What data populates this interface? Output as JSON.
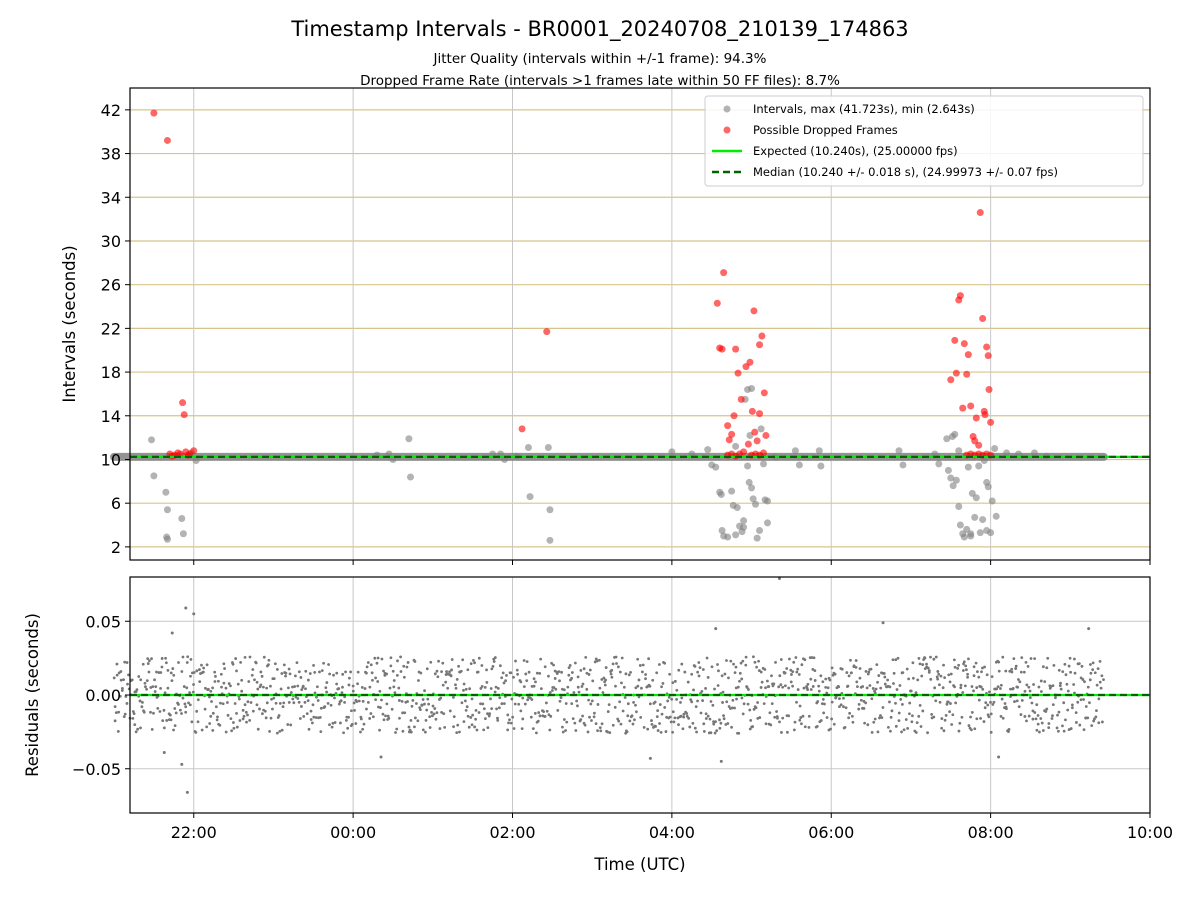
{
  "title": "Timestamp Intervals - BR0001_20240708_210139_174863",
  "subtitle_1": "Jitter Quality (intervals within +/-1 frame): 94.3%",
  "subtitle_2": "Dropped Frame Rate (intervals >1 frames late within 50 FF files): 8.7%",
  "chart_data": [
    {
      "type": "scatter",
      "ylabel": "Intervals (seconds)",
      "xlim": [
        -3.47,
        10.0
      ],
      "ylim": [
        0.8,
        44.0
      ],
      "y_ticks": [
        2,
        6,
        10,
        14,
        18,
        22,
        26,
        30,
        34,
        38,
        42
      ],
      "x_tick_hours": [
        22,
        24,
        26,
        28,
        30,
        32,
        34
      ],
      "grid": "on",
      "legend_position": "top-right",
      "colors": {
        "intervals": "#808080",
        "dropped": "#ff0000",
        "expected": "#00ee00",
        "median": "#006400",
        "hgrid": "#d8c48a",
        "vgrid": "#c8c8c8"
      },
      "legend": [
        {
          "label": "Intervals, max (41.723s), min (2.643s)",
          "marker": "gray-dot"
        },
        {
          "label": "Possible Dropped Frames",
          "marker": "red-dot"
        },
        {
          "label": "Expected (10.240s), (25.00000 fps)",
          "marker": "green-line"
        },
        {
          "label": "Median (10.240 +/- 0.018 s), (24.99973 +/- 0.07 fps)",
          "marker": "dashed-darkgreen-line"
        }
      ],
      "expected_interval": 10.24,
      "median_interval": 10.24,
      "baseline_range_hours": [
        21.0,
        33.42
      ],
      "series": [
        {
          "name": "Intervals, max (41.723s), min (2.643s)",
          "points": [
            [
              21.47,
              11.8
            ],
            [
              21.5,
              8.5
            ],
            [
              21.65,
              7.0
            ],
            [
              21.67,
              5.4
            ],
            [
              21.66,
              2.9
            ],
            [
              21.67,
              2.7
            ],
            [
              21.85,
              4.6
            ],
            [
              21.87,
              3.2
            ],
            [
              21.97,
              10.6
            ],
            [
              22.03,
              9.9
            ],
            [
              24.3,
              10.4
            ],
            [
              24.45,
              10.5
            ],
            [
              24.5,
              10.0
            ],
            [
              24.7,
              11.9
            ],
            [
              24.72,
              8.4
            ],
            [
              25.75,
              10.5
            ],
            [
              25.85,
              10.5
            ],
            [
              25.9,
              10.0
            ],
            [
              26.05,
              10.3
            ],
            [
              26.2,
              11.1
            ],
            [
              26.22,
              6.6
            ],
            [
              26.45,
              11.1
            ],
            [
              26.47,
              5.4
            ],
            [
              26.47,
              2.6
            ],
            [
              28.0,
              10.7
            ],
            [
              28.25,
              10.5
            ],
            [
              28.45,
              10.9
            ],
            [
              28.5,
              9.5
            ],
            [
              28.55,
              9.3
            ],
            [
              28.6,
              7.0
            ],
            [
              28.62,
              6.8
            ],
            [
              28.63,
              3.5
            ],
            [
              28.65,
              3.0
            ],
            [
              28.7,
              2.9
            ],
            [
              28.75,
              7.1
            ],
            [
              28.77,
              5.8
            ],
            [
              28.8,
              11.2
            ],
            [
              28.82,
              5.6
            ],
            [
              28.85,
              3.9
            ],
            [
              28.88,
              3.4
            ],
            [
              28.9,
              4.4
            ],
            [
              28.95,
              9.4
            ],
            [
              28.97,
              7.9
            ],
            [
              29.0,
              7.4
            ],
            [
              29.02,
              6.4
            ],
            [
              29.05,
              5.9
            ],
            [
              29.07,
              2.8
            ],
            [
              29.1,
              3.5
            ],
            [
              29.12,
              12.8
            ],
            [
              29.15,
              9.6
            ],
            [
              29.17,
              6.3
            ],
            [
              29.2,
              4.2
            ],
            [
              28.98,
              12.2
            ],
            [
              28.92,
              15.5
            ],
            [
              28.95,
              16.4
            ],
            [
              29.0,
              16.5
            ],
            [
              28.9,
              3.8
            ],
            [
              28.8,
              3.1
            ],
            [
              29.2,
              6.2
            ],
            [
              29.3,
              10.2
            ],
            [
              29.55,
              10.8
            ],
            [
              29.6,
              9.5
            ],
            [
              29.85,
              10.8
            ],
            [
              29.87,
              9.4
            ],
            [
              30.85,
              10.8
            ],
            [
              30.9,
              9.5
            ],
            [
              31.3,
              10.5
            ],
            [
              31.35,
              9.6
            ],
            [
              31.45,
              11.9
            ],
            [
              31.47,
              9.0
            ],
            [
              31.5,
              8.3
            ],
            [
              31.52,
              12.1
            ],
            [
              31.55,
              12.3
            ],
            [
              31.57,
              8.1
            ],
            [
              31.6,
              5.7
            ],
            [
              31.62,
              4.0
            ],
            [
              31.65,
              3.2
            ],
            [
              31.67,
              2.9
            ],
            [
              31.7,
              3.6
            ],
            [
              31.72,
              9.3
            ],
            [
              31.75,
              3.2
            ],
            [
              31.77,
              6.9
            ],
            [
              31.8,
              4.7
            ],
            [
              31.82,
              6.5
            ],
            [
              31.85,
              9.4
            ],
            [
              31.87,
              3.3
            ],
            [
              31.9,
              4.5
            ],
            [
              31.92,
              9.9
            ],
            [
              31.95,
              7.9
            ],
            [
              31.97,
              7.5
            ],
            [
              32.0,
              3.3
            ],
            [
              32.02,
              6.2
            ],
            [
              32.05,
              11.0
            ],
            [
              32.07,
              4.8
            ],
            [
              31.53,
              7.6
            ],
            [
              31.6,
              10.8
            ],
            [
              31.75,
              3.0
            ],
            [
              31.95,
              3.5
            ],
            [
              32.2,
              10.6
            ],
            [
              32.35,
              10.5
            ],
            [
              32.55,
              10.6
            ],
            [
              32.7,
              10.3
            ]
          ]
        },
        {
          "name": "Possible Dropped Frames",
          "points": [
            [
              21.5,
              41.7
            ],
            [
              21.67,
              39.2
            ],
            [
              21.86,
              15.2
            ],
            [
              21.88,
              14.1
            ],
            [
              21.7,
              10.5
            ],
            [
              21.73,
              10.3
            ],
            [
              21.76,
              10.4
            ],
            [
              21.8,
              10.6
            ],
            [
              21.83,
              10.5
            ],
            [
              21.9,
              10.7
            ],
            [
              21.93,
              10.4
            ],
            [
              21.95,
              10.5
            ],
            [
              22.0,
              10.8
            ],
            [
              26.12,
              12.8
            ],
            [
              26.43,
              21.7
            ],
            [
              28.57,
              24.3
            ],
            [
              28.6,
              20.2
            ],
            [
              28.63,
              20.1
            ],
            [
              28.65,
              27.1
            ],
            [
              28.7,
              13.1
            ],
            [
              28.72,
              11.8
            ],
            [
              28.75,
              12.3
            ],
            [
              28.78,
              14.0
            ],
            [
              28.8,
              20.1
            ],
            [
              28.83,
              17.9
            ],
            [
              28.87,
              15.5
            ],
            [
              28.9,
              10.7
            ],
            [
              28.93,
              18.5
            ],
            [
              28.96,
              11.4
            ],
            [
              28.98,
              18.9
            ],
            [
              29.01,
              14.4
            ],
            [
              29.03,
              23.6
            ],
            [
              29.04,
              12.5
            ],
            [
              29.07,
              11.7
            ],
            [
              29.1,
              20.5
            ],
            [
              29.1,
              14.2
            ],
            [
              29.13,
              21.3
            ],
            [
              29.16,
              16.1
            ],
            [
              29.18,
              12.2
            ],
            [
              28.7,
              10.4
            ],
            [
              28.75,
              10.5
            ],
            [
              28.8,
              10.3
            ],
            [
              28.85,
              10.5
            ],
            [
              29.0,
              10.4
            ],
            [
              29.05,
              10.5
            ],
            [
              29.1,
              10.4
            ],
            [
              29.15,
              10.6
            ],
            [
              31.5,
              17.3
            ],
            [
              31.55,
              20.9
            ],
            [
              31.57,
              17.9
            ],
            [
              31.6,
              24.6
            ],
            [
              31.62,
              25.0
            ],
            [
              31.65,
              14.7
            ],
            [
              31.67,
              20.6
            ],
            [
              31.7,
              17.8
            ],
            [
              31.72,
              19.6
            ],
            [
              31.75,
              14.9
            ],
            [
              31.78,
              12.1
            ],
            [
              31.8,
              11.7
            ],
            [
              31.82,
              13.8
            ],
            [
              31.85,
              11.3
            ],
            [
              31.87,
              32.6
            ],
            [
              31.9,
              22.9
            ],
            [
              31.92,
              14.4
            ],
            [
              31.93,
              14.1
            ],
            [
              31.95,
              20.3
            ],
            [
              31.97,
              19.5
            ],
            [
              31.98,
              16.4
            ],
            [
              32.0,
              13.4
            ],
            [
              31.7,
              10.4
            ],
            [
              31.75,
              10.5
            ],
            [
              31.8,
              10.4
            ],
            [
              31.85,
              10.5
            ],
            [
              31.9,
              10.4
            ],
            [
              31.95,
              10.5
            ],
            [
              32.0,
              10.4
            ]
          ]
        },
        {
          "name": "Expected (10.240s), (25.00000 fps)",
          "y": 10.24
        },
        {
          "name": "Median (10.240 +/- 0.018 s), (24.99973 +/- 0.07 fps)",
          "y": 10.24
        }
      ]
    },
    {
      "type": "scatter",
      "ylabel": "Residuals (seconds)",
      "xlabel": "Time (UTC)",
      "xlim": [
        -3.47,
        10.0
      ],
      "ylim": [
        -0.08,
        0.08
      ],
      "y_ticks": [
        0.05,
        0.0,
        -0.05
      ],
      "y_tick_labels": [
        "0.05",
        "0.00",
        "−0.05"
      ],
      "x_tick_labels": [
        "22:00",
        "00:00",
        "02:00",
        "04:00",
        "06:00",
        "08:00",
        "10:00"
      ],
      "x_tick_hours": [
        22,
        24,
        26,
        28,
        30,
        32,
        34
      ],
      "grid": "on",
      "x_range_hours": [
        21.0,
        33.42
      ],
      "bands": [
        0.02,
        0.01,
        0.0,
        -0.01,
        -0.02
      ],
      "spread": 0.012,
      "outliers": [
        [
          21.73,
          0.042
        ],
        [
          21.63,
          -0.039
        ],
        [
          21.9,
          0.059
        ],
        [
          21.92,
          -0.066
        ],
        [
          21.85,
          -0.047
        ],
        [
          22.0,
          0.055
        ],
        [
          24.35,
          -0.042
        ],
        [
          27.73,
          -0.043
        ],
        [
          28.55,
          0.045
        ],
        [
          28.62,
          -0.045
        ],
        [
          29.35,
          0.079
        ],
        [
          30.65,
          0.049
        ],
        [
          32.1,
          -0.042
        ],
        [
          33.23,
          0.045
        ]
      ],
      "zero_line": 0.0
    }
  ]
}
